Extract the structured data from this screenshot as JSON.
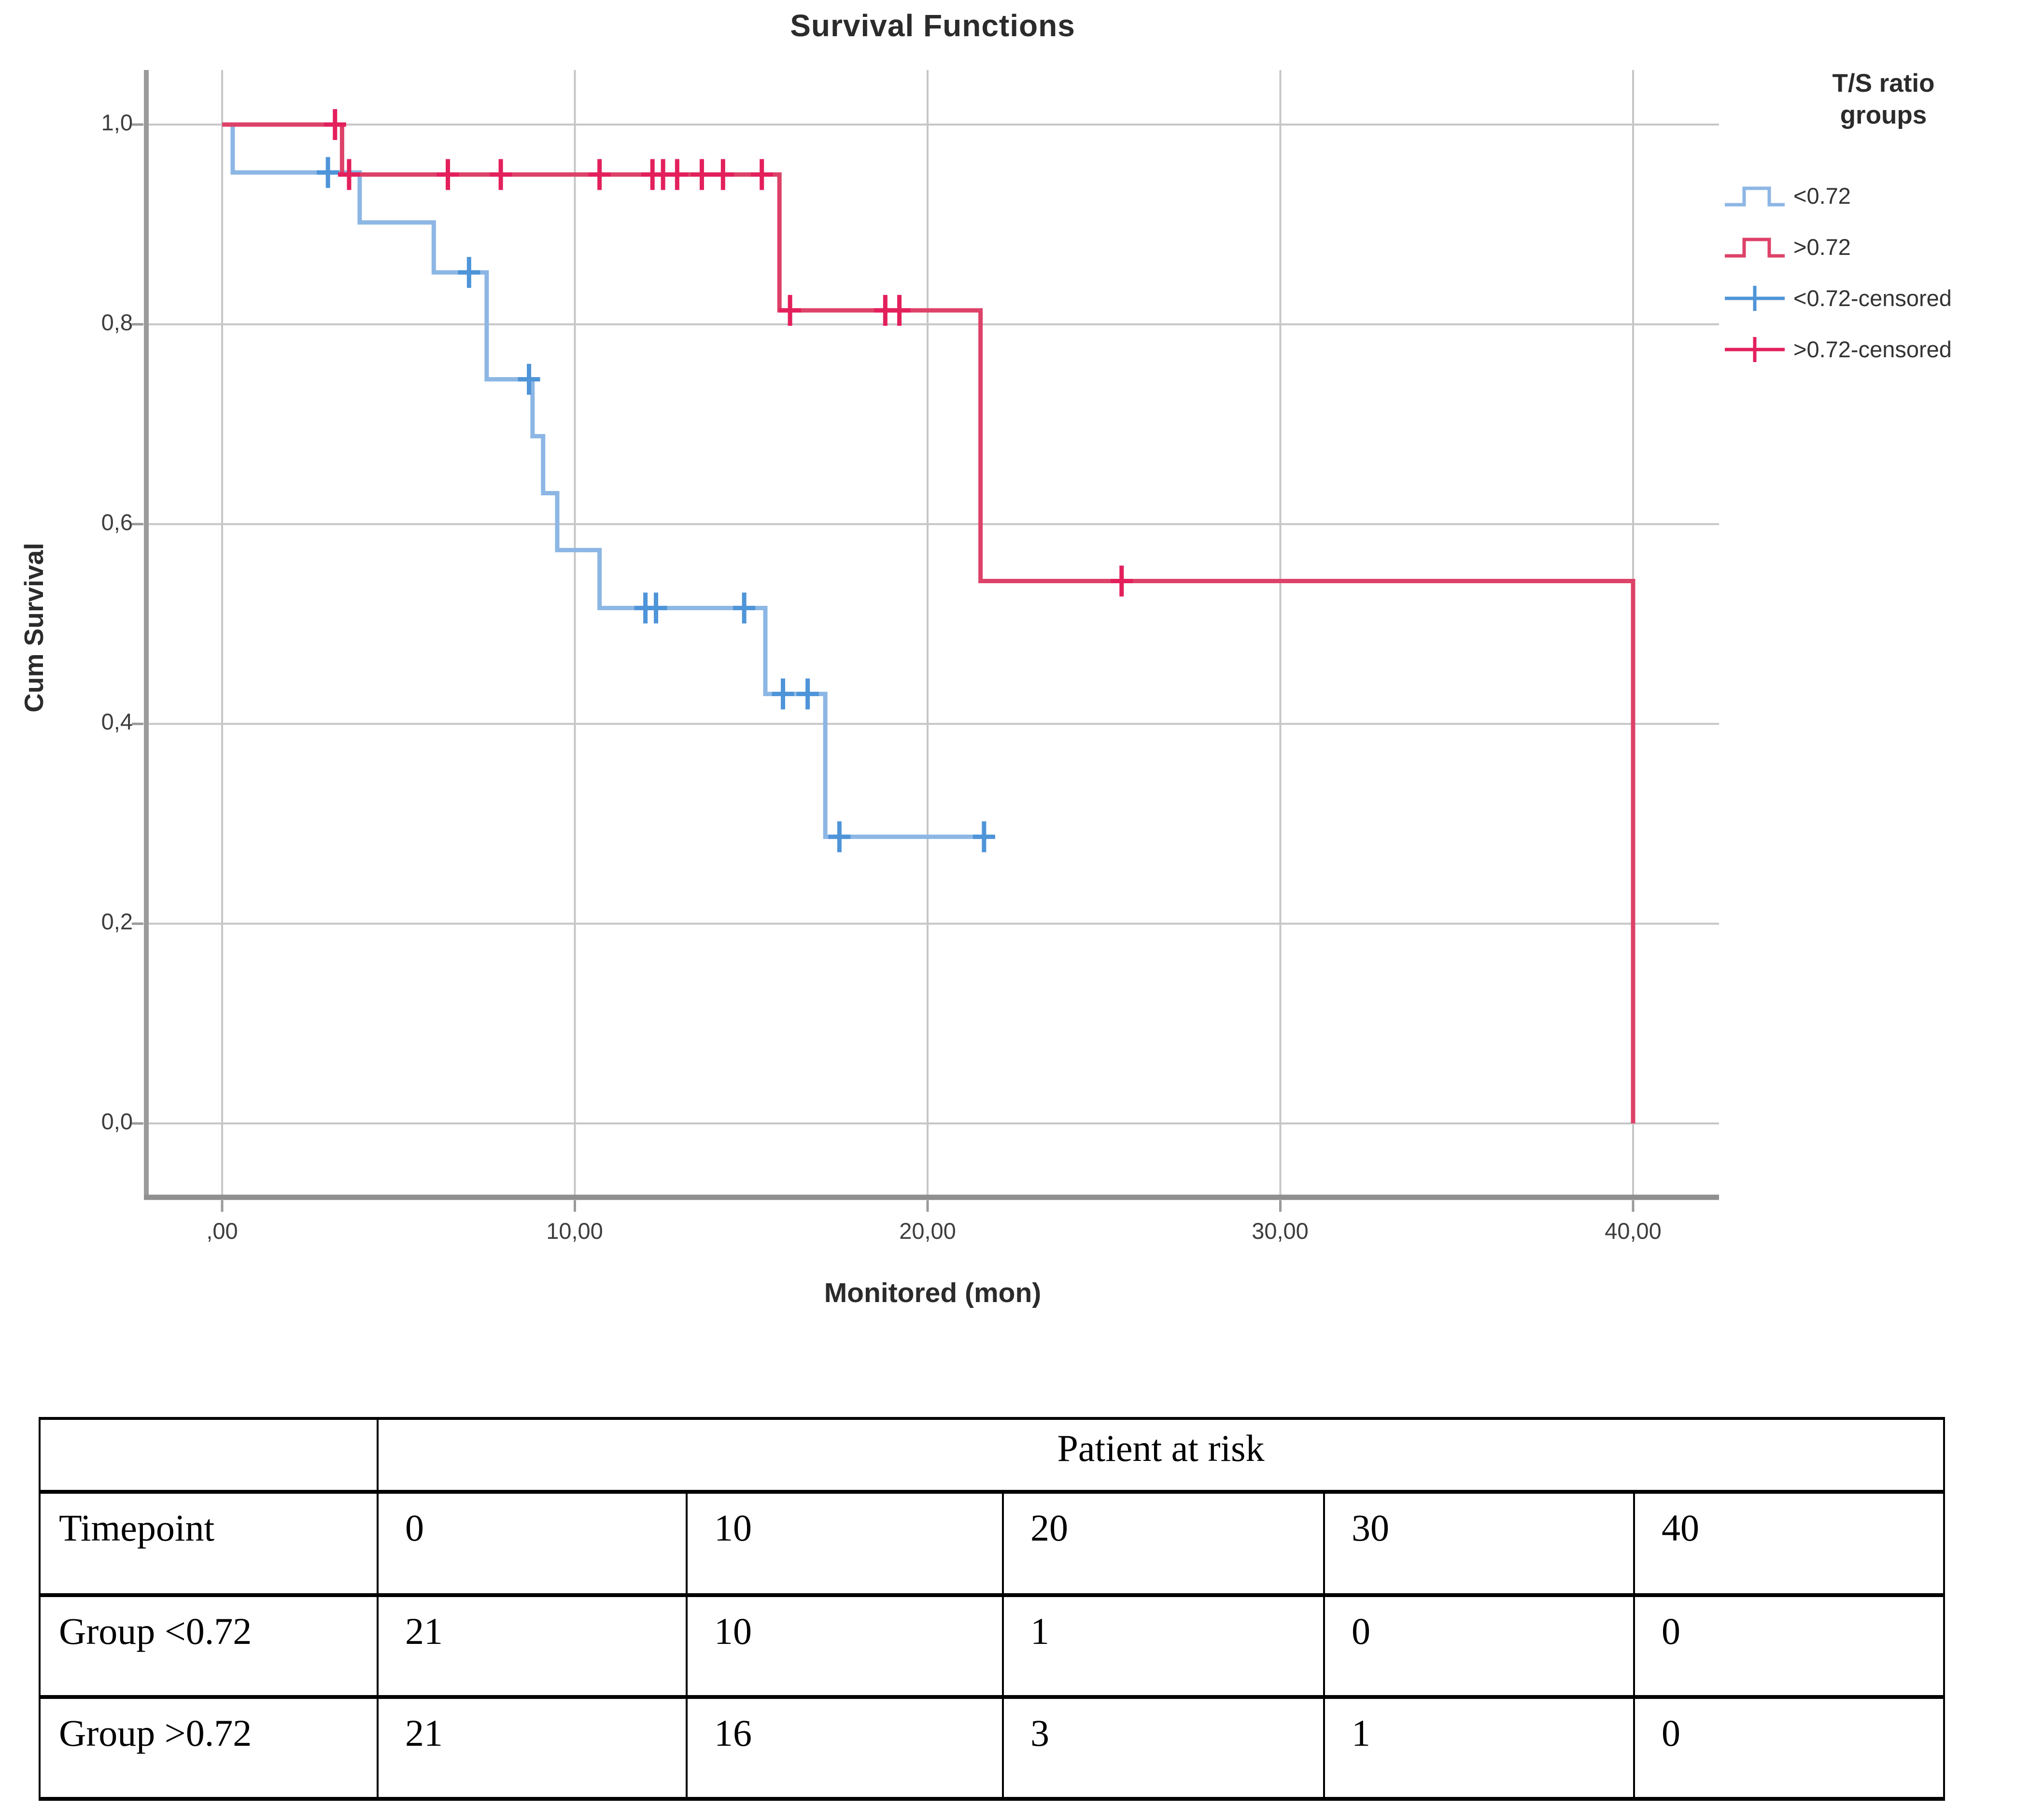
{
  "chart": {
    "title": "Survival Functions",
    "x_label": "Monitored (mon)",
    "y_label": "Cum Survival",
    "x_ticks": [
      ",00",
      "10,00",
      "20,00",
      "30,00",
      "40,00"
    ],
    "y_ticks": [
      "0,0",
      "0,2",
      "0,4",
      "0,6",
      "0,8",
      "1,0"
    ],
    "colors": {
      "blue": "#8cb6e4",
      "blue_censor": "#4e94d8",
      "red": "#dd4268",
      "red_censor": "#e3205c",
      "grid": "#c6c6c6",
      "axis": "#9a9a9a",
      "tick_text": "#3d3d3d"
    },
    "legend": {
      "title_line1": "T/S ratio",
      "title_line2": "groups",
      "items": [
        {
          "label": "<0.72",
          "type": "step",
          "color_key": "blue"
        },
        {
          "label": ">0.72",
          "type": "step",
          "color_key": "red"
        },
        {
          "label": "<0.72-censored",
          "type": "censor",
          "color_key": "blue_censor"
        },
        {
          "label": ">0.72-censored",
          "type": "censor",
          "color_key": "red_censor"
        }
      ]
    }
  },
  "chart_data": {
    "type": "line",
    "subtype": "kaplan-meier-step",
    "title": "Survival Functions",
    "xlabel": "Monitored (mon)",
    "ylabel": "Cum Survival",
    "xlim": [
      0,
      40
    ],
    "ylim": [
      0.0,
      1.0
    ],
    "x_tick_values": [
      0,
      10,
      20,
      30,
      40
    ],
    "y_tick_values": [
      0.0,
      0.2,
      0.4,
      0.6,
      0.8,
      1.0
    ],
    "grid": true,
    "legend_position": "right",
    "series": [
      {
        "name": "<0.72",
        "color": "#8cb6e4",
        "censor_color": "#4e94d8",
        "end_time": 21.7,
        "steps": [
          [
            0,
            1.0
          ],
          [
            0.3,
            0.952
          ],
          [
            3.9,
            0.902
          ],
          [
            6.0,
            0.852
          ],
          [
            7.5,
            0.745
          ],
          [
            8.8,
            0.688
          ],
          [
            9.1,
            0.631
          ],
          [
            9.5,
            0.574
          ],
          [
            10.7,
            0.516
          ],
          [
            15.4,
            0.43
          ],
          [
            17.1,
            0.287
          ]
        ],
        "censored": [
          [
            3.0,
            0.952
          ],
          [
            7.0,
            0.852
          ],
          [
            8.7,
            0.745
          ],
          [
            12.0,
            0.516
          ],
          [
            12.3,
            0.516
          ],
          [
            14.8,
            0.516
          ],
          [
            15.9,
            0.43
          ],
          [
            16.6,
            0.43
          ],
          [
            17.5,
            0.287
          ],
          [
            21.6,
            0.287
          ]
        ]
      },
      {
        "name": ">0.72",
        "color": "#dd4268",
        "censor_color": "#e3205c",
        "end_time": 40.0,
        "steps": [
          [
            0,
            1.0
          ],
          [
            3.4,
            0.95
          ],
          [
            15.8,
            0.814
          ],
          [
            21.5,
            0.543
          ],
          [
            40.0,
            0.0
          ]
        ],
        "censored": [
          [
            3.2,
            1.0
          ],
          [
            3.6,
            0.95
          ],
          [
            6.4,
            0.95
          ],
          [
            7.9,
            0.95
          ],
          [
            10.7,
            0.95
          ],
          [
            12.2,
            0.95
          ],
          [
            12.5,
            0.95
          ],
          [
            12.9,
            0.95
          ],
          [
            13.6,
            0.95
          ],
          [
            14.2,
            0.95
          ],
          [
            15.3,
            0.95
          ],
          [
            16.1,
            0.814
          ],
          [
            18.8,
            0.814
          ],
          [
            19.2,
            0.814
          ],
          [
            25.5,
            0.543
          ]
        ]
      }
    ]
  },
  "table": {
    "header": "Patient at risk",
    "rows": [
      {
        "label": "Timepoint",
        "values": [
          "0",
          "10",
          "20",
          "30",
          "40"
        ]
      },
      {
        "label": "Group <0.72",
        "values": [
          "21",
          "10",
          "1",
          "0",
          "0"
        ]
      },
      {
        "label": "Group >0.72",
        "values": [
          "21",
          "16",
          "3",
          "1",
          "0"
        ]
      }
    ]
  }
}
